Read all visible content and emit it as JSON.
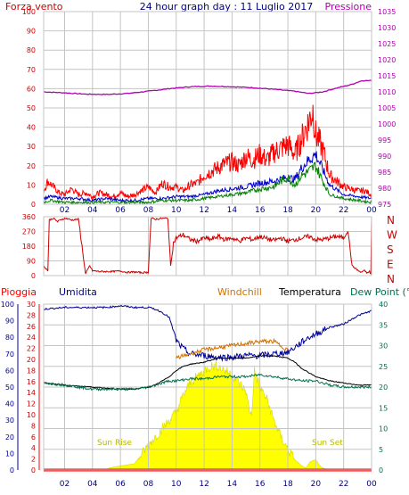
{
  "colors": {
    "background": "#FFFFFF",
    "plot_bg": "#FFFFFF",
    "grid": "#C4C4C4",
    "frame": "#C4C4C4",
    "wind_gust": "#FF0000",
    "wind_avg": "#0000CC",
    "wind_min": "#008000",
    "pressure": "#B000B0",
    "direction": "#CC0000",
    "rain": "#FF0000",
    "humidity": "#000099",
    "windchill": "#D07000",
    "temperature": "#000000",
    "dewpoint": "#007050",
    "solar": "#FFFF00",
    "solar_edge": "#D8D800",
    "sun_text": "#B8B800",
    "header_title": "#000080",
    "tick_text": "#000080"
  },
  "header": {
    "left_label": "Forza vento ",
    "center_title": "24 hour graph day : 11 Luglio 2017",
    "right_label": "Pressione"
  },
  "direction_labels": [
    "N",
    "W",
    "S",
    "E",
    "N"
  ],
  "lower_legend": {
    "rain": "Pioggia",
    "humidity": "Umidita",
    "windchill": "Windchill",
    "temperature": "Temperatura",
    "dewpoint": "Dew Point (°C"
  },
  "annotations": {
    "sunrise": "Sun Rise",
    "sunset": "Sun Set"
  },
  "time_ticks": [
    "02",
    "04",
    "06",
    "08",
    "10",
    "12",
    "14",
    "16",
    "18",
    "20",
    "22",
    "00"
  ],
  "chart_data": [
    {
      "type": "line",
      "x_unit": "hour",
      "xlim": [
        0.5,
        24
      ],
      "yleft": {
        "ticks": [
          0,
          10,
          20,
          30,
          40,
          50,
          60,
          70,
          80,
          90,
          100
        ],
        "ylim": [
          0,
          100
        ]
      },
      "yright": {
        "ticks": [
          975,
          980,
          985,
          990,
          995,
          1000,
          1005,
          1010,
          1015,
          1020,
          1025,
          1030,
          1035
        ],
        "ylim": [
          975,
          1035
        ]
      },
      "series": [
        {
          "key": "pressure",
          "axis": "right",
          "x": [
            0.5,
            2,
            3.5,
            5,
            6.5,
            8,
            9.5,
            11,
            12.5,
            14,
            15.5,
            17,
            18.5,
            19.5,
            20.5,
            21.5,
            22.5,
            23.3,
            24
          ],
          "values": [
            1010,
            1009.7,
            1009.3,
            1009.2,
            1009.5,
            1010.2,
            1011,
            1011.6,
            1011.8,
            1011.6,
            1011.3,
            1010.8,
            1010.2,
            1009.5,
            1010,
            1011.2,
            1012.2,
            1013.5,
            1013.5
          ]
        },
        {
          "key": "wind_gust",
          "axis": "left",
          "x": [
            0.5,
            0.8,
            1.2,
            1.6,
            2,
            2.5,
            3,
            3.5,
            4,
            4.5,
            5,
            5.5,
            6,
            6.5,
            7,
            7.5,
            8,
            8.5,
            9,
            9.5,
            10,
            10.5,
            11,
            11.5,
            12,
            12.5,
            13,
            13.5,
            14,
            14.5,
            15,
            15.5,
            16,
            16.5,
            17,
            17.5,
            18,
            18.5,
            19,
            19.2,
            19.5,
            19.8,
            20,
            20.3,
            20.6,
            21,
            21.5,
            22,
            22.5,
            23,
            23.5,
            24
          ],
          "values": [
            7,
            12,
            9,
            6,
            5,
            8,
            5,
            6,
            4,
            6,
            5,
            4,
            6,
            4,
            5,
            7,
            9,
            6,
            11,
            9,
            9,
            7,
            10,
            11,
            15,
            17,
            19,
            21,
            22,
            20,
            25,
            23,
            26,
            23,
            27,
            29,
            31,
            26,
            34,
            38,
            43,
            49,
            36,
            32,
            26,
            15,
            12,
            9,
            8,
            7,
            7,
            5
          ]
        },
        {
          "key": "wind_avg",
          "axis": "left",
          "x": [
            0.5,
            1,
            2,
            3,
            4,
            5,
            6,
            7,
            8,
            9,
            10,
            11,
            12,
            13,
            14,
            15,
            16,
            17,
            18,
            18.5,
            19,
            19.5,
            20,
            20.5,
            21,
            22,
            23,
            24
          ],
          "values": [
            3,
            4,
            3,
            3,
            2,
            3,
            2,
            2,
            3,
            3,
            4,
            4,
            5,
            7,
            8,
            9,
            11,
            12,
            14,
            13,
            19,
            23,
            26,
            18,
            10,
            5,
            4,
            3
          ]
        },
        {
          "key": "wind_min",
          "axis": "left",
          "x": [
            0.5,
            1,
            2,
            3,
            4,
            5,
            6,
            7,
            8,
            9,
            10,
            11,
            12,
            13,
            14,
            15,
            16,
            17,
            17.5,
            18,
            18.5,
            19,
            19.5,
            20,
            20.5,
            21,
            22,
            23,
            24
          ],
          "values": [
            1,
            2,
            1,
            1,
            1,
            1,
            1,
            1,
            1,
            2,
            2,
            2,
            3,
            4,
            5,
            6,
            8,
            9,
            12,
            14,
            10,
            15,
            17,
            20,
            12,
            5,
            3,
            2,
            1
          ]
        }
      ]
    },
    {
      "type": "line",
      "x_unit": "hour",
      "xlim": [
        0.5,
        24
      ],
      "yleft": {
        "ticks": [
          0,
          90,
          180,
          270,
          360
        ],
        "ylim": [
          0,
          360
        ]
      },
      "series": [
        {
          "key": "direction",
          "axis": "left",
          "x": [
            0.5,
            0.8,
            0.9,
            1.2,
            1.5,
            1.8,
            2.1,
            2.5,
            3,
            3.5,
            3.8,
            4,
            4.5,
            5,
            5.5,
            6,
            6.5,
            7,
            7.5,
            8,
            8.2,
            8.5,
            9,
            9.4,
            9.6,
            9.8,
            10,
            10.5,
            11,
            11.5,
            12,
            12.5,
            13,
            13.5,
            14,
            14.5,
            15,
            15.5,
            16,
            16.5,
            17,
            17.5,
            18,
            18.5,
            19,
            19.5,
            20,
            20.5,
            21,
            21.5,
            22,
            22.3,
            22.6,
            22.9,
            23.2,
            23.5,
            23.7,
            23.85,
            23.95,
            24
          ],
          "values": [
            60,
            30,
            340,
            350,
            330,
            345,
            350,
            340,
            345,
            10,
            60,
            30,
            25,
            25,
            25,
            28,
            20,
            22,
            18,
            20,
            350,
            345,
            350,
            350,
            60,
            200,
            230,
            250,
            220,
            210,
            230,
            220,
            240,
            220,
            230,
            210,
            230,
            220,
            240,
            225,
            215,
            230,
            210,
            220,
            230,
            240,
            220,
            220,
            230,
            240,
            230,
            280,
            60,
            40,
            20,
            30,
            15,
            25,
            10,
            360
          ]
        }
      ]
    },
    {
      "type": "area",
      "x_unit": "hour",
      "xlim": [
        0.5,
        24
      ],
      "yleft": {
        "label": "Umidita",
        "ticks": [
          0,
          10,
          20,
          30,
          40,
          50,
          60,
          70,
          80,
          90,
          100
        ],
        "ylim": [
          0,
          100
        ]
      },
      "yleft_inner": {
        "label": "Pioggia",
        "ticks": [
          0,
          2,
          4,
          6,
          8,
          10,
          12,
          14,
          16,
          18,
          20,
          22,
          24,
          26,
          28,
          30
        ],
        "ylim": [
          0,
          30
        ]
      },
      "yright": {
        "ticks": [
          0,
          5,
          10,
          15,
          20,
          25,
          30,
          35,
          40
        ],
        "ylim": [
          0,
          40
        ]
      },
      "series": [
        {
          "key": "solar",
          "axis": "right",
          "x": [
            0.5,
            4.9,
            5.2,
            6,
            7,
            8,
            9,
            10,
            10.5,
            11,
            12,
            12.5,
            13,
            13.5,
            14,
            14.5,
            15,
            15.2,
            15.4,
            15.6,
            16,
            16.5,
            17,
            17.5,
            18,
            18.5,
            19,
            19.3,
            19.6,
            20,
            20.3,
            20.5,
            21,
            24
          ],
          "values": [
            0,
            0,
            0.5,
            1,
            1.5,
            6,
            10,
            14,
            18,
            21,
            24,
            25,
            25,
            24,
            23,
            21,
            19,
            15,
            13,
            24,
            20,
            17,
            12,
            8,
            5,
            2.5,
            1,
            0.5,
            2,
            2.5,
            1,
            0.5,
            0,
            0
          ]
        },
        {
          "key": "humidity",
          "axis": "left",
          "x": [
            0.5,
            2,
            4,
            5,
            6,
            7,
            8,
            8.5,
            9,
            9.5,
            10,
            10.5,
            11,
            12,
            13,
            14,
            15,
            16,
            17,
            18,
            18.5,
            19,
            19.5,
            20,
            21,
            22,
            23,
            24
          ],
          "values": [
            97,
            98,
            98,
            98,
            99,
            98,
            98,
            97,
            95,
            92,
            78,
            73,
            70,
            69,
            68,
            68,
            69,
            69,
            70,
            71,
            74,
            77,
            80,
            82,
            86,
            88,
            93,
            96
          ]
        },
        {
          "key": "windchill",
          "axis": "right",
          "x": [
            10,
            11,
            12,
            13,
            14,
            15,
            16,
            17,
            17.5,
            18
          ],
          "values": [
            27,
            28,
            29,
            29.5,
            30,
            30.5,
            31,
            31,
            30,
            29
          ]
        },
        {
          "key": "temperature",
          "axis": "right",
          "x": [
            0.5,
            2,
            4,
            6,
            7,
            8,
            8.5,
            9,
            9.5,
            10,
            10.5,
            11,
            12,
            13,
            14,
            15,
            16,
            17,
            18,
            18.5,
            19,
            19.5,
            20,
            21,
            22,
            23,
            24
          ],
          "values": [
            21,
            20.5,
            20,
            19.5,
            19.5,
            20,
            20.5,
            21.5,
            22.5,
            24,
            25,
            25.5,
            26,
            27,
            27,
            27,
            27.5,
            27.5,
            27,
            26,
            24.5,
            23.5,
            22.5,
            21.5,
            21,
            20.5,
            20.5
          ]
        },
        {
          "key": "dewpoint",
          "axis": "right",
          "x": [
            0.5,
            2,
            4,
            6,
            7,
            8,
            9,
            9.5,
            10,
            11,
            12,
            13,
            14,
            15,
            16,
            17,
            18,
            19,
            20,
            20.5,
            21,
            22,
            23,
            24
          ],
          "values": [
            21,
            20.5,
            19.5,
            19.5,
            19.5,
            20,
            21,
            21.5,
            21.5,
            22,
            22,
            22.5,
            22.5,
            22.5,
            23,
            22.5,
            22,
            21.5,
            21.5,
            21,
            20.5,
            20,
            20,
            20
          ]
        },
        {
          "key": "rain",
          "axis": "inner",
          "x": [
            0.5,
            24
          ],
          "values": [
            0,
            0
          ]
        }
      ]
    }
  ]
}
